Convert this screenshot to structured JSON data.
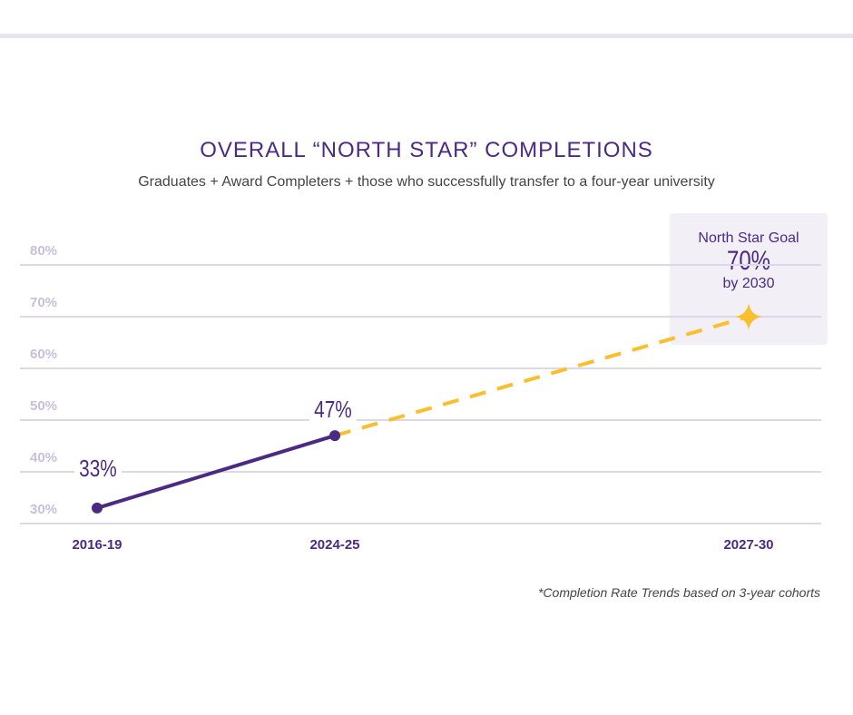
{
  "chart_data": {
    "type": "line",
    "title": "OVERALL “NORTH STAR” COMPLETIONS",
    "subtitle": "Graduates + Award Completers + those who successfully transfer to a four-year university",
    "categories": [
      "2016-19",
      "2024-25",
      "2027-30"
    ],
    "series": [
      {
        "style": "solid",
        "color": "#4b2a84",
        "points": [
          {
            "x": "2016-19",
            "y": 33,
            "label": "33%"
          },
          {
            "x": "2024-25",
            "y": 47,
            "label": "47%"
          }
        ]
      },
      {
        "style": "dashed",
        "color": "#fbbf2e",
        "points": [
          {
            "x": "2024-25",
            "y": 47
          },
          {
            "x": "2027-30",
            "y": 70
          }
        ]
      }
    ],
    "yticks": [
      "30%",
      "40%",
      "50%",
      "60%",
      "70%",
      "80%"
    ],
    "ylim": [
      30,
      80
    ],
    "grid": true,
    "goal": {
      "line1": "North Star Goal",
      "value": "70%",
      "line3": "by 2030",
      "marker": "star-icon"
    },
    "footnote": "*Completion Rate Trends based on 3-year cohorts"
  }
}
